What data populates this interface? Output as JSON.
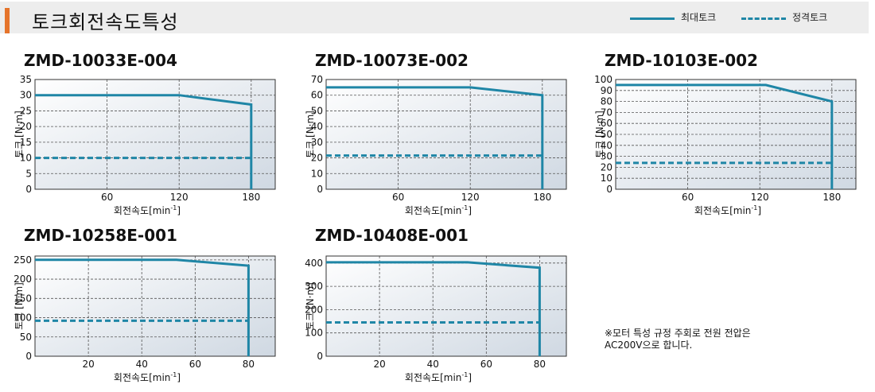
{
  "page": {
    "title": "토크회전속도특성",
    "legend": [
      {
        "label": "최대토크",
        "color": "#1f86a6",
        "style": "solid"
      },
      {
        "label": "정격토크",
        "color": "#1f86a6",
        "style": "dashed"
      }
    ],
    "note_line1": "※모터 특성 규정 주회로 전원 전압은",
    "note_line2": "AC200V으로 합니다.",
    "colors": {
      "curve": "#1f86a6",
      "accent": "#e5742b",
      "grid": "#555555"
    }
  },
  "chart_data": [
    {
      "type": "line",
      "title": "ZMD-10033E-004",
      "xlabel": "회전속도[min",
      "xlabel_sup": "-1",
      "xlabel_end": "]",
      "ylabel": "토크 [N·m]",
      "xlim": [
        0,
        200
      ],
      "ylim": [
        0,
        35
      ],
      "xticks": [
        60,
        120,
        180
      ],
      "yticks": [
        0,
        5,
        10,
        15,
        20,
        25,
        30,
        35
      ],
      "series": [
        {
          "style": "solid",
          "x": [
            0,
            120,
            180,
            180
          ],
          "y": [
            30,
            30,
            27,
            0
          ]
        },
        {
          "style": "dashed",
          "x": [
            0,
            180
          ],
          "y": [
            10,
            10
          ]
        }
      ]
    },
    {
      "type": "line",
      "title": "ZMD-10073E-002",
      "xlabel": "회전속도[min",
      "xlabel_sup": "-1",
      "xlabel_end": "]",
      "ylabel": "토크 [N·m]",
      "xlim": [
        0,
        200
      ],
      "ylim": [
        0,
        70
      ],
      "xticks": [
        60,
        120,
        180
      ],
      "yticks": [
        0,
        10,
        20,
        30,
        40,
        50,
        60,
        70
      ],
      "series": [
        {
          "style": "solid",
          "x": [
            0,
            120,
            180,
            180
          ],
          "y": [
            65,
            65,
            60,
            0
          ]
        },
        {
          "style": "dashed",
          "x": [
            0,
            180
          ],
          "y": [
            21.5,
            21.5
          ]
        }
      ]
    },
    {
      "type": "line",
      "title": "ZMD-10103E-002",
      "xlabel": "회전속도[min",
      "xlabel_sup": "-1",
      "xlabel_end": "]",
      "ylabel": "토크 [N·m]",
      "xlim": [
        0,
        200
      ],
      "ylim": [
        0,
        100
      ],
      "xticks": [
        60,
        120,
        180
      ],
      "yticks": [
        0,
        10,
        20,
        30,
        40,
        50,
        60,
        70,
        80,
        90,
        100
      ],
      "series": [
        {
          "style": "solid",
          "x": [
            0,
            125,
            180,
            180
          ],
          "y": [
            95,
            95,
            80,
            0
          ]
        },
        {
          "style": "dashed",
          "x": [
            0,
            180
          ],
          "y": [
            24,
            24
          ]
        }
      ]
    },
    {
      "type": "line",
      "title": "ZMD-10258E-001",
      "xlabel": "회전속도[min",
      "xlabel_sup": "-1",
      "xlabel_end": "]",
      "ylabel": "토크 [N·m]",
      "xlim": [
        0,
        90
      ],
      "ylim": [
        0,
        260
      ],
      "xticks": [
        20,
        40,
        60,
        80
      ],
      "yticks": [
        0,
        50,
        100,
        150,
        200,
        250
      ],
      "series": [
        {
          "style": "solid",
          "x": [
            0,
            53,
            80,
            80
          ],
          "y": [
            250,
            250,
            235,
            0
          ]
        },
        {
          "style": "dashed",
          "x": [
            0,
            80
          ],
          "y": [
            92,
            92
          ]
        }
      ]
    },
    {
      "type": "line",
      "title": "ZMD-10408E-001",
      "xlabel": "회전속도[min",
      "xlabel_sup": "-1",
      "xlabel_end": "]",
      "ylabel": "토크 [N·m]",
      "xlim": [
        0,
        90
      ],
      "ylim": [
        0,
        430
      ],
      "xticks": [
        20,
        40,
        60,
        80
      ],
      "yticks": [
        0,
        100,
        200,
        300,
        400
      ],
      "series": [
        {
          "style": "solid",
          "x": [
            0,
            53,
            80,
            80
          ],
          "y": [
            403,
            403,
            380,
            0
          ]
        },
        {
          "style": "dashed",
          "x": [
            0,
            80
          ],
          "y": [
            145,
            145
          ]
        }
      ]
    }
  ]
}
